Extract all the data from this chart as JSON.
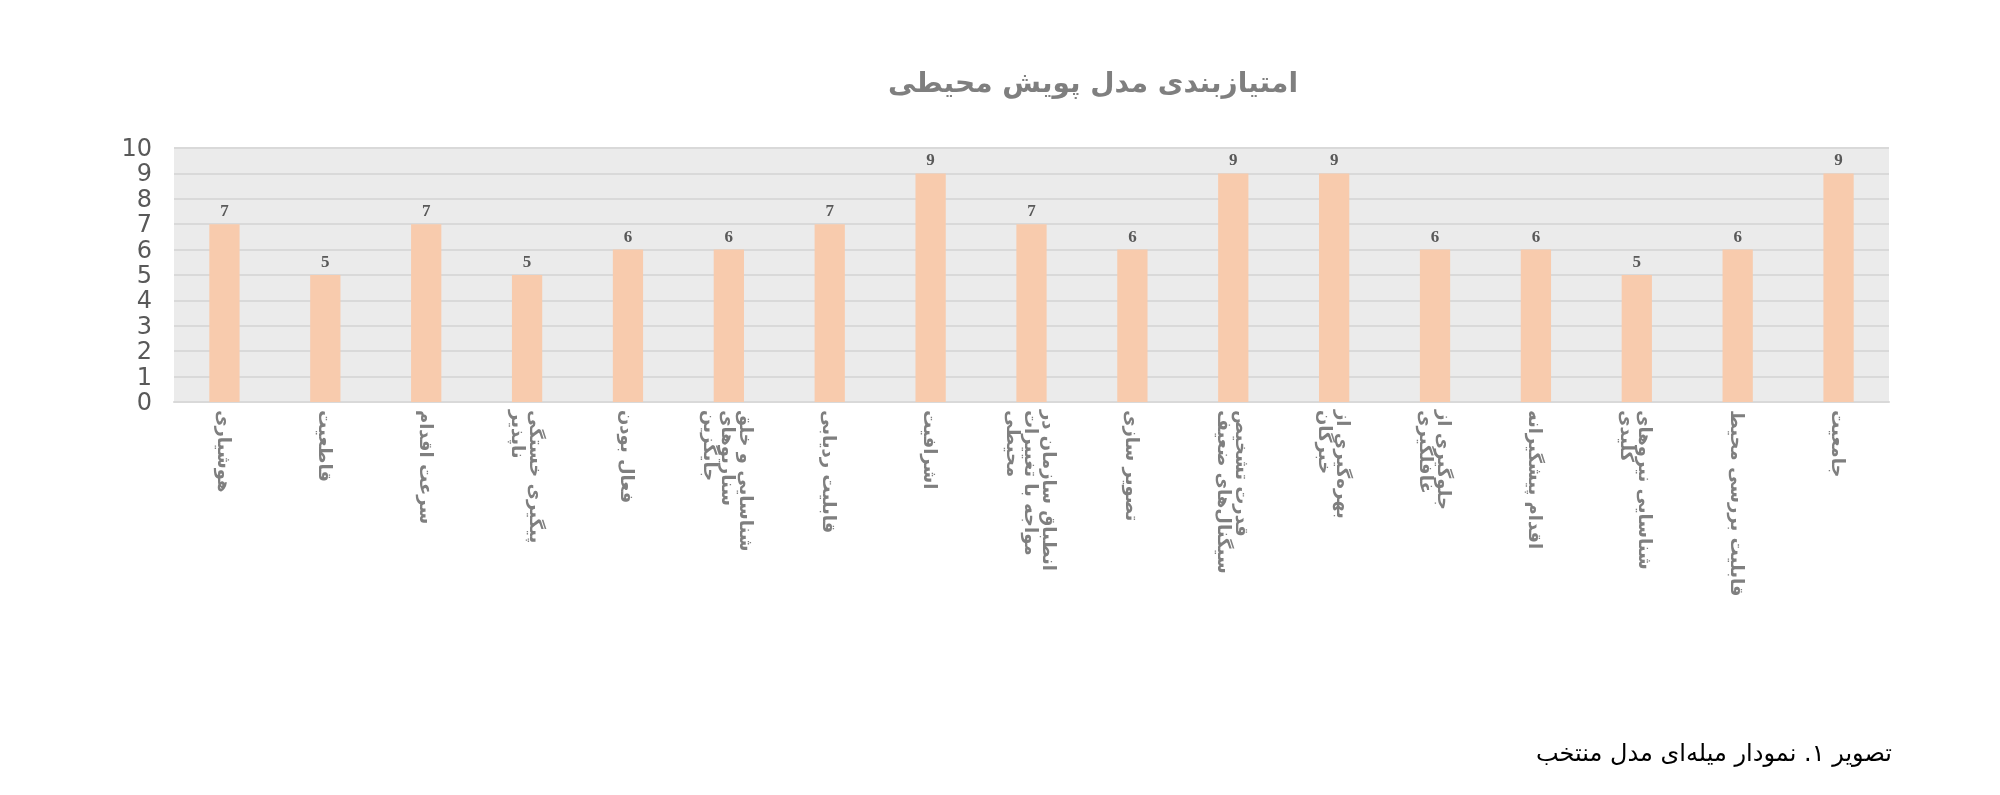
{
  "chart_data": {
    "type": "bar",
    "title": "امتیازبندی مدل پویش محیطی",
    "categories": [
      "هوشیاری",
      "قاطعیت",
      "سرعت اقدام",
      "پیگیری خستگی ناپذیر",
      "فعال بودن",
      "شناسایی و خلق سناریوهای جایگزین",
      "قابلیت ردیابی",
      "اشرافیت",
      "انطباق سازمان در مواجه با تغییرات محیطی",
      "تصویر سازی",
      "قدرت تشخیص سیگنال‌های ضعیف",
      "بهره‌گیری از خبرگان",
      "جلوگیری از غافلگیری",
      "اقدام پیشگیرانه",
      "شناسایی نیروهای کلیدی",
      "قابلیت بررسی محیط",
      "جامعیت"
    ],
    "values": [
      7,
      5,
      7,
      5,
      6,
      6,
      7,
      9,
      7,
      6,
      9,
      9,
      6,
      6,
      5,
      6,
      9
    ],
    "color": "#f8cbad",
    "ylim": [
      0,
      10
    ],
    "yticks": [
      0,
      1,
      2,
      3,
      4,
      5,
      6,
      7,
      8,
      9,
      10
    ],
    "grid": "y",
    "data_labels": true,
    "annotations": [
      "تصویر ۱. نمودار میله‌ای مدل منتخب"
    ]
  }
}
